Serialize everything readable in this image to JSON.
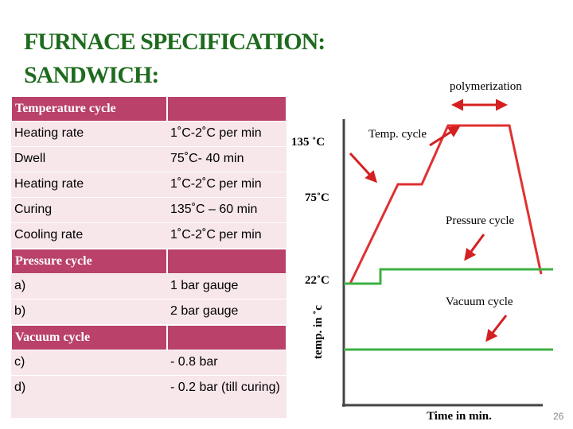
{
  "title": {
    "line1": "FURNACE SPECIFICATION:",
    "line2": "SANDWICH:"
  },
  "table": {
    "sections": [
      {
        "header": "Temperature cycle",
        "rows": [
          [
            "Heating rate",
            "1˚C-2˚C per min"
          ],
          [
            "Dwell",
            "75˚C- 40 min"
          ],
          [
            "Heating rate",
            "1˚C-2˚C per min"
          ],
          [
            "Curing",
            "135˚C – 60 min"
          ],
          [
            "Cooling rate",
            "1˚C-2˚C per min"
          ]
        ]
      },
      {
        "header": "Pressure cycle",
        "rows": [
          [
            "a)",
            "1 bar gauge"
          ],
          [
            "b)",
            "2 bar gauge"
          ]
        ]
      },
      {
        "header": "Vacuum cycle",
        "rows": [
          [
            "c)",
            "- 0.8 bar"
          ],
          [
            "d)",
            "- 0.2 bar (till curing)"
          ]
        ]
      }
    ]
  },
  "diagram": {
    "polymerization": "polymerization",
    "temp_cycle": "Temp. cycle",
    "pressure_cycle": "Pressure cycle",
    "vacuum_cycle": "Vacuum cycle",
    "t135": "135 ˚C",
    "t75": "75˚C",
    "t22": "22˚C",
    "y_label": "temp. in ˚c",
    "x_label": "Time in min."
  },
  "slide_number": "26"
}
